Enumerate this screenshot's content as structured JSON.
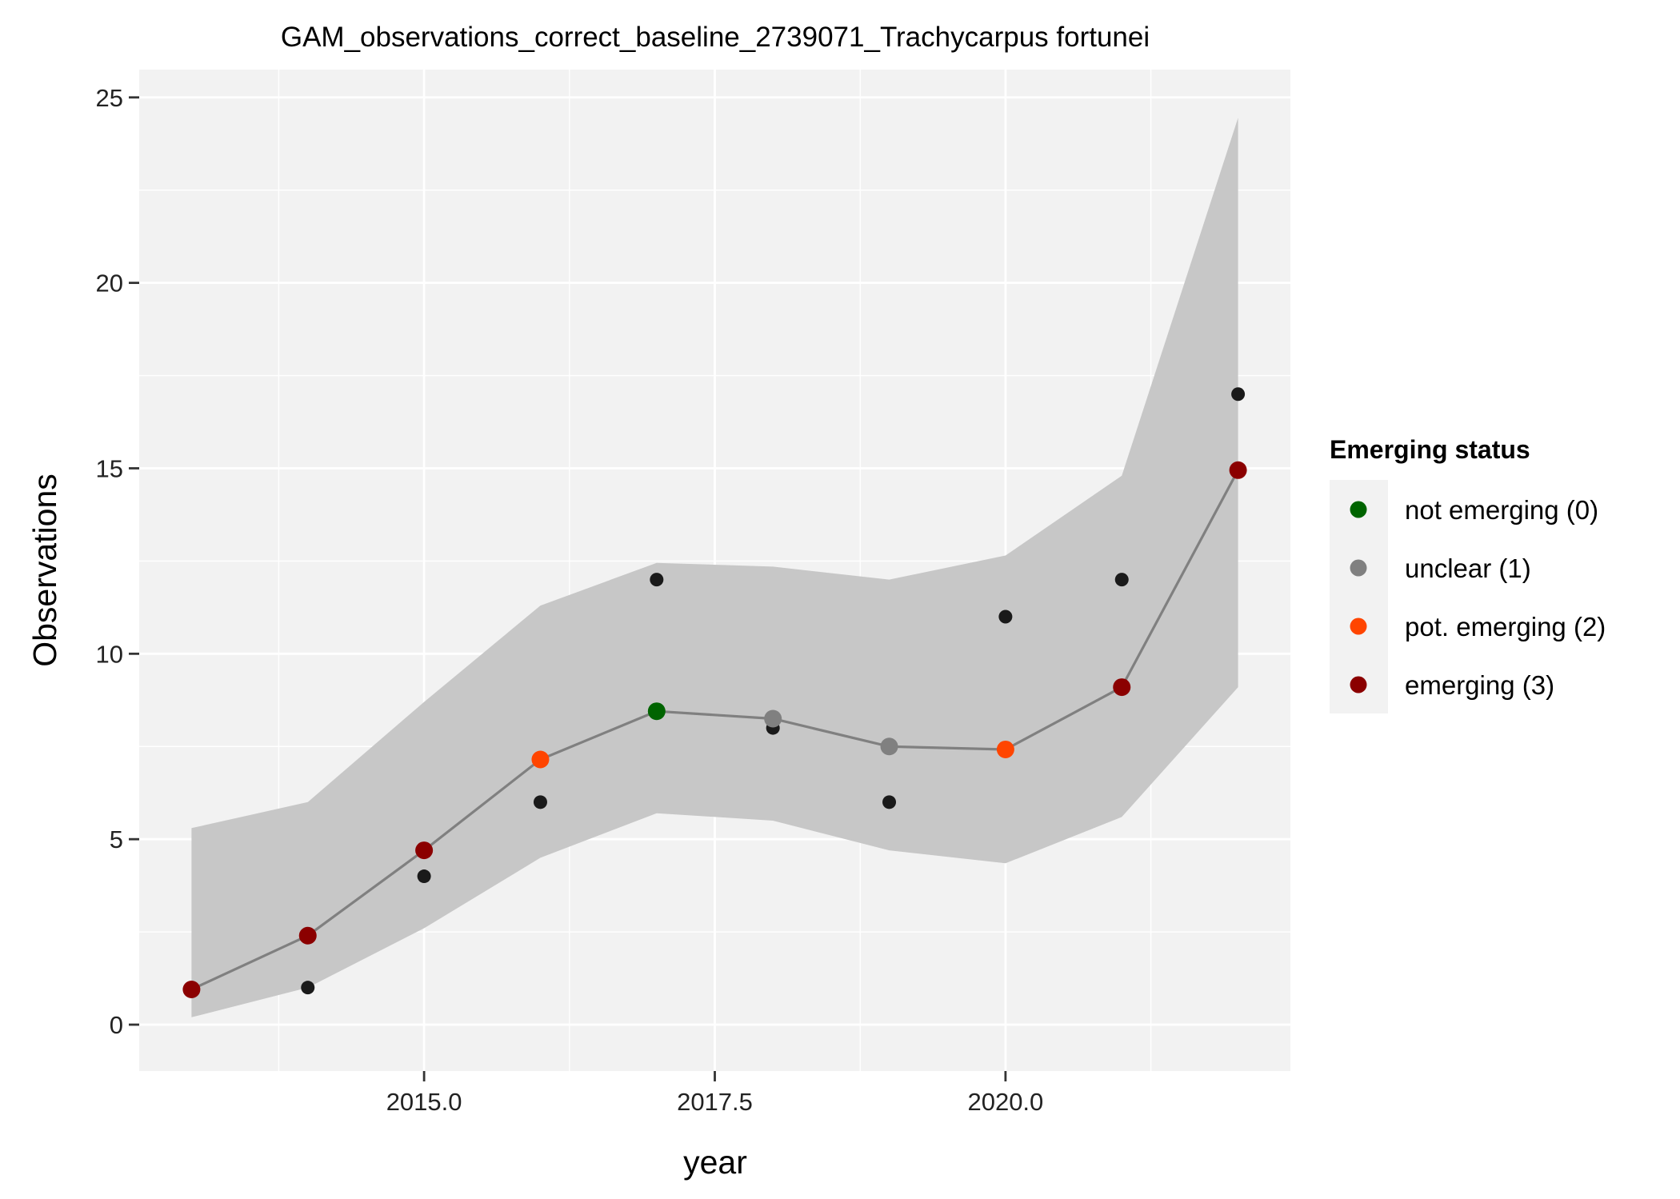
{
  "chart_data": {
    "type": "line",
    "title": "GAM_observations_correct_baseline_2739071_Trachycarpus fortunei",
    "xlabel": "year",
    "ylabel": "Observations",
    "xlim": [
      2012.55,
      2022.45
    ],
    "ylim": [
      -1.25,
      25.75
    ],
    "x_ticks": [
      2015.0,
      2017.5,
      2020.0
    ],
    "x_tick_labels": [
      "2015.0",
      "2017.5",
      "2020.0"
    ],
    "x_minor_ticks": [
      2013.75,
      2016.25,
      2018.75,
      2021.25
    ],
    "y_ticks": [
      0,
      5,
      10,
      15,
      20,
      25
    ],
    "y_tick_labels": [
      "0",
      "5",
      "10",
      "15",
      "20",
      "25"
    ],
    "y_minor_ticks": [
      2.5,
      7.5,
      12.5,
      17.5,
      22.5
    ],
    "grid": true,
    "observed": {
      "x": [
        2014,
        2015,
        2016,
        2017,
        2018,
        2019,
        2020,
        2021,
        2022
      ],
      "y": [
        1,
        4,
        6,
        12,
        8,
        6,
        11,
        12,
        17
      ],
      "color": "#1a1a1a"
    },
    "fit": {
      "x": [
        2013,
        2014,
        2015,
        2016,
        2017,
        2018,
        2019,
        2020,
        2021,
        2022
      ],
      "y": [
        0.95,
        2.4,
        4.7,
        7.15,
        8.45,
        8.25,
        7.5,
        7.42,
        9.1,
        14.95
      ],
      "status": [
        3,
        3,
        3,
        2,
        0,
        1,
        1,
        2,
        3,
        3
      ],
      "line_color": "#808080"
    },
    "ribbon": {
      "x": [
        2013,
        2014,
        2015,
        2016,
        2017,
        2018,
        2019,
        2020,
        2021,
        2022
      ],
      "lower": [
        0.2,
        1.0,
        2.6,
        4.5,
        5.7,
        5.5,
        4.7,
        4.35,
        5.6,
        9.1
      ],
      "upper": [
        5.3,
        6.0,
        8.7,
        11.3,
        12.45,
        12.35,
        12.0,
        12.65,
        14.8,
        24.45
      ],
      "color": "#c7c7c7"
    },
    "legend": {
      "title": "Emerging status",
      "position": "right",
      "items": [
        {
          "label": "not emerging (0)",
          "color": "#006400"
        },
        {
          "label": "unclear (1)",
          "color": "#808080"
        },
        {
          "label": "pot. emerging (2)",
          "color": "#ff4500"
        },
        {
          "label": "emerging (3)",
          "color": "#8b0000"
        }
      ]
    },
    "status_colors": {
      "0": "#006400",
      "1": "#808080",
      "2": "#ff4500",
      "3": "#8b0000"
    },
    "panel_color": "#f2f2f2"
  }
}
